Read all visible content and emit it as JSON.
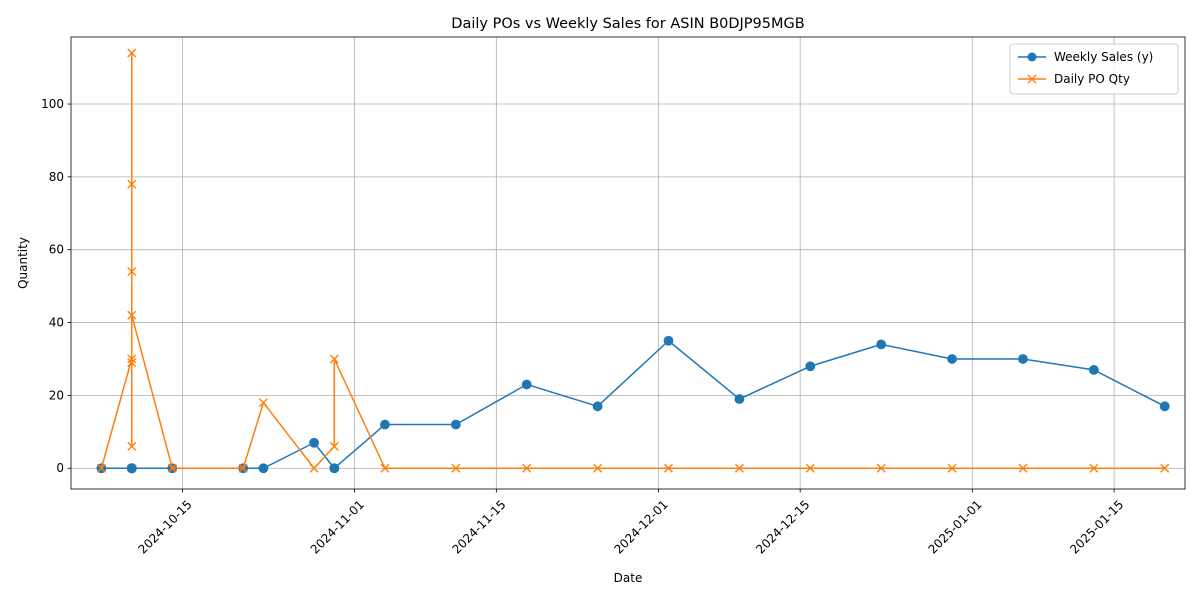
{
  "chart_data": {
    "type": "line",
    "title": "Daily POs vs Weekly Sales for ASIN B0DJP95MGB",
    "xlabel": "Date",
    "ylabel": "Quantity",
    "x_type": "date",
    "xlim": [
      "2024-10-04",
      "2025-01-22"
    ],
    "ylim": [
      -5.7,
      118.4
    ],
    "grid": true,
    "legend_position": "top-right",
    "x_ticks": [
      "2024-10-15",
      "2024-11-01",
      "2024-11-15",
      "2024-12-01",
      "2024-12-15",
      "2025-01-01",
      "2025-01-15"
    ],
    "y_ticks": [
      0,
      20,
      40,
      60,
      80,
      100
    ],
    "series": [
      {
        "name": "Weekly Sales (y)",
        "color": "#1f77b4",
        "marker": "circle",
        "points": [
          [
            "2024-10-07",
            0
          ],
          [
            "2024-10-10",
            0
          ],
          [
            "2024-10-10",
            0
          ],
          [
            "2024-10-10",
            0
          ],
          [
            "2024-10-10",
            0
          ],
          [
            "2024-10-10",
            0
          ],
          [
            "2024-10-10",
            0
          ],
          [
            "2024-10-10",
            0
          ],
          [
            "2024-10-14",
            0
          ],
          [
            "2024-10-21",
            0
          ],
          [
            "2024-10-23",
            0
          ],
          [
            "2024-10-28",
            7
          ],
          [
            "2024-10-30",
            0
          ],
          [
            "2024-10-30",
            0
          ],
          [
            "2024-11-04",
            12
          ],
          [
            "2024-11-11",
            12
          ],
          [
            "2024-11-18",
            23
          ],
          [
            "2024-11-25",
            17
          ],
          [
            "2024-12-02",
            35
          ],
          [
            "2024-12-09",
            19
          ],
          [
            "2024-12-16",
            28
          ],
          [
            "2024-12-23",
            34
          ],
          [
            "2024-12-30",
            30
          ],
          [
            "2025-01-06",
            30
          ],
          [
            "2025-01-13",
            27
          ],
          [
            "2025-01-20",
            17
          ]
        ]
      },
      {
        "name": "Daily PO Qty",
        "color": "#ff7f0e",
        "marker": "x",
        "points": [
          [
            "2024-10-07",
            0
          ],
          [
            "2024-10-10",
            30
          ],
          [
            "2024-10-10",
            114
          ],
          [
            "2024-10-10",
            78
          ],
          [
            "2024-10-10",
            54
          ],
          [
            "2024-10-10",
            6
          ],
          [
            "2024-10-10",
            29
          ],
          [
            "2024-10-10",
            42
          ],
          [
            "2024-10-14",
            0
          ],
          [
            "2024-10-21",
            0
          ],
          [
            "2024-10-23",
            18
          ],
          [
            "2024-10-28",
            0
          ],
          [
            "2024-10-30",
            6
          ],
          [
            "2024-10-30",
            30
          ],
          [
            "2024-11-04",
            0
          ],
          [
            "2024-11-11",
            0
          ],
          [
            "2024-11-18",
            0
          ],
          [
            "2024-11-25",
            0
          ],
          [
            "2024-12-02",
            0
          ],
          [
            "2024-12-09",
            0
          ],
          [
            "2024-12-16",
            0
          ],
          [
            "2024-12-23",
            0
          ],
          [
            "2024-12-30",
            0
          ],
          [
            "2025-01-06",
            0
          ],
          [
            "2025-01-13",
            0
          ],
          [
            "2025-01-20",
            0
          ]
        ]
      }
    ]
  }
}
